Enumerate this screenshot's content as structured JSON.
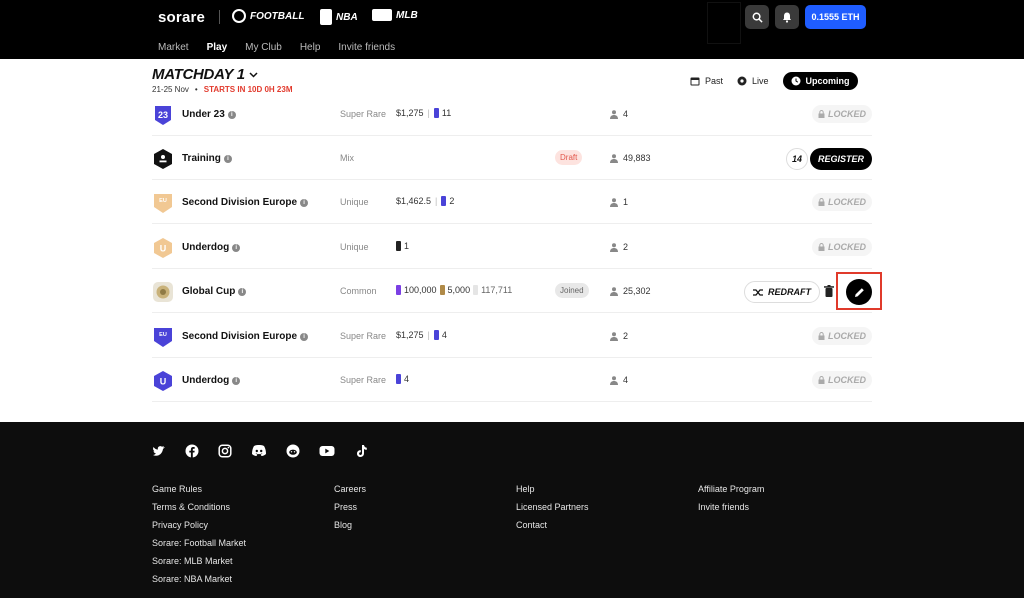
{
  "header": {
    "logo": "sorare",
    "sports": [
      {
        "label": "FOOTBALL",
        "icon": "football-icon"
      },
      {
        "label": "NBA",
        "icon": "nba-icon"
      },
      {
        "label": "MLB",
        "icon": "mlb-icon"
      }
    ],
    "nav": [
      "Market",
      "Play",
      "My Club",
      "Help",
      "Invite friends"
    ],
    "active_nav": "Play",
    "balance": "0.1555 ETH"
  },
  "matchday": {
    "title": "MATCHDAY 1",
    "dates": "21-25 Nov",
    "starts": "STARTS IN 10D 0H 23M",
    "filters": [
      "Past",
      "Live",
      "Upcoming"
    ],
    "active_filter": "Upcoming"
  },
  "rows": [
    {
      "name": "Under 23",
      "rarity": "Super Rare",
      "prize_amount": "$1,275",
      "cards": "11",
      "count": "4",
      "action": "LOCKED",
      "badge_color": "#4a43d8"
    },
    {
      "name": "Training",
      "rarity": "Mix",
      "tag": "Draft",
      "count": "49,883",
      "entries": "14",
      "action": "REGISTER",
      "badge_color": "#111111"
    },
    {
      "name": "Second Division Europe",
      "rarity": "Unique",
      "prize_amount": "$1,462.5",
      "cards": "2",
      "count": "1",
      "action": "LOCKED",
      "badge_color": "#f1c893"
    },
    {
      "name": "Underdog",
      "rarity": "Unique",
      "cards": "1",
      "count": "2",
      "action": "LOCKED",
      "badge_color": "#f1c893"
    },
    {
      "name": "Global Cup",
      "rarity": "Common",
      "prizes": [
        "100,000",
        "5,000",
        "117,711"
      ],
      "tag": "Joined",
      "count": "25,302",
      "action": "REDRAFT",
      "badge_color": "#c9b27a"
    },
    {
      "name": "Second Division Europe",
      "rarity": "Super Rare",
      "prize_amount": "$1,275",
      "cards": "4",
      "count": "2",
      "action": "LOCKED",
      "badge_color": "#4a43d8"
    },
    {
      "name": "Underdog",
      "rarity": "Super Rare",
      "cards": "4",
      "count": "4",
      "action": "LOCKED",
      "badge_color": "#4a43d8"
    }
  ],
  "footer": {
    "social": [
      "twitter-icon",
      "facebook-icon",
      "instagram-icon",
      "discord-icon",
      "reddit-icon",
      "youtube-icon",
      "tiktok-icon"
    ],
    "col1": [
      "Game Rules",
      "Terms & Conditions",
      "Privacy Policy",
      "Sorare: Football Market",
      "Sorare: MLB Market",
      "Sorare: NBA Market"
    ],
    "col2": [
      "Careers",
      "Press",
      "Blog"
    ],
    "col3": [
      "Help",
      "Licensed Partners",
      "Contact"
    ],
    "col4": [
      "Affiliate Program",
      "Invite friends"
    ]
  }
}
